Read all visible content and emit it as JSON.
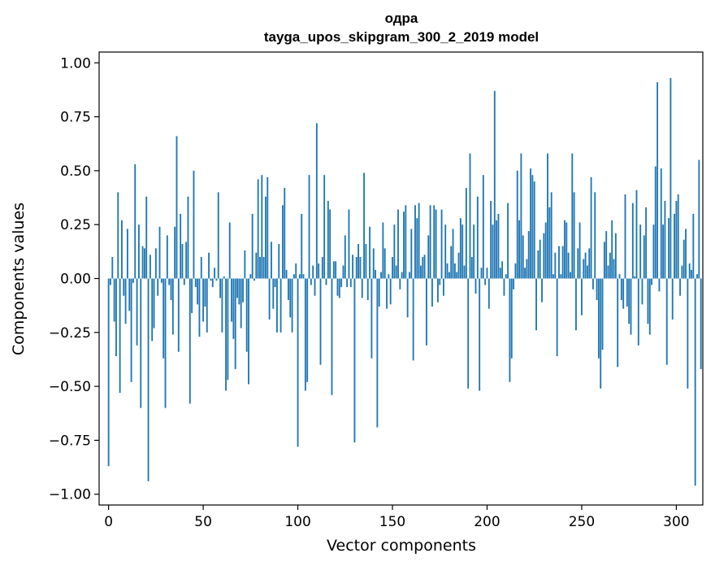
{
  "chart_data": {
    "type": "bar",
    "title": "одра",
    "subtitle": "tayga_upos_skipgram_300_2_2019 model",
    "xlabel": "Vector components",
    "ylabel": "Components values",
    "xlim": [
      -5,
      314
    ],
    "ylim": [
      -1.05,
      1.05
    ],
    "xticks": [
      0,
      50,
      100,
      150,
      200,
      250,
      300
    ],
    "xtick_labels": [
      "0",
      "50",
      "100",
      "150",
      "200",
      "250",
      "300"
    ],
    "yticks": [
      1.0,
      0.75,
      0.5,
      0.25,
      0.0,
      -0.25,
      -0.5,
      -0.75,
      -1.0
    ],
    "ytick_labels": [
      "1.00",
      "0.75",
      "0.50",
      "0.25",
      "0.00",
      "−0.25",
      "−0.50",
      "−0.75",
      "−1.00"
    ],
    "grid": false,
    "color": "#1f77b4",
    "values": [
      -0.87,
      -0.03,
      0.1,
      -0.2,
      -0.36,
      0.4,
      -0.53,
      0.27,
      -0.08,
      -0.21,
      0.23,
      -0.15,
      -0.48,
      -0.02,
      0.53,
      -0.31,
      0.25,
      -0.6,
      0.15,
      0.14,
      0.38,
      -0.94,
      0.11,
      -0.29,
      -0.23,
      0.14,
      -0.08,
      0.24,
      -0.02,
      -0.37,
      -0.6,
      0.2,
      -0.03,
      -0.1,
      -0.26,
      0.24,
      0.66,
      -0.34,
      0.3,
      0.16,
      -0.03,
      0.17,
      0.38,
      -0.58,
      -0.16,
      0.5,
      -0.04,
      -0.12,
      -0.27,
      0.1,
      -0.2,
      -0.13,
      -0.25,
      0.12,
      -0.01,
      -0.04,
      0.05,
      -0.01,
      0.4,
      -0.09,
      -0.25,
      0.01,
      -0.52,
      -0.47,
      0.26,
      -0.2,
      -0.28,
      -0.42,
      -0.09,
      -0.12,
      -0.23,
      -0.11,
      0.13,
      -0.34,
      -0.49,
      0.02,
      0.3,
      -0.01,
      0.12,
      0.46,
      0.1,
      0.48,
      0.1,
      0.38,
      0.47,
      -0.19,
      0.17,
      -0.14,
      -0.04,
      -0.25,
      0.16,
      -0.25,
      0.34,
      0.42,
      0.04,
      -0.1,
      -0.18,
      -0.25,
      0.02,
      0.07,
      -0.78,
      0.02,
      0.3,
      0.02,
      -0.52,
      -0.48,
      0.48,
      -0.03,
      0.06,
      -0.08,
      0.72,
      0.07,
      -0.4,
      0.1,
      0.48,
      -0.03,
      0.36,
      0.32,
      -0.54,
      0.08,
      0.08,
      -0.08,
      -0.09,
      -0.04,
      0.06,
      0.2,
      -0.04,
      0.32,
      -0.04,
      0.11,
      -0.76,
      0.1,
      0.16,
      0.1,
      -0.09,
      0.49,
      0.16,
      -0.1,
      0.24,
      -0.37,
      0.14,
      0.04,
      -0.69,
      -0.13,
      0.03,
      0.26,
      0.14,
      -0.14,
      0.02,
      -0.12,
      0.1,
      0.25,
      0.06,
      0.32,
      -0.05,
      0.03,
      0.31,
      0.34,
      -0.18,
      0.03,
      0.23,
      -0.38,
      0.34,
      0.28,
      0.35,
      0.06,
      0.1,
      0.11,
      -0.31,
      0.2,
      0.34,
      -0.13,
      0.34,
      0.32,
      -0.11,
      -0.03,
      0.32,
      -0.08,
      0.25,
      0.07,
      0.03,
      0.15,
      0.23,
      0.07,
      0.03,
      0.12,
      0.28,
      0.25,
      0.06,
      0.42,
      -0.51,
      0.58,
      0.1,
      0.25,
      -0.07,
      0.38,
      -0.52,
      0.05,
      0.48,
      -0.03,
      0.05,
      -0.14,
      0.36,
      0.25,
      0.87,
      0.27,
      0.3,
      0.05,
      0.08,
      -0.08,
      0.02,
      0.35,
      -0.48,
      -0.37,
      -0.05,
      0.07,
      0.5,
      0.27,
      0.58,
      0.2,
      0.05,
      0.09,
      0.22,
      0.51,
      0.48,
      0.45,
      -0.24,
      0.13,
      0.18,
      -0.11,
      0.21,
      0.26,
      0.58,
      0.33,
      0.4,
      0.02,
      0.12,
      -0.36,
      0.15,
      0.02,
      0.15,
      0.27,
      0.26,
      0.12,
      0.03,
      0.58,
      0.4,
      -0.24,
      0.14,
      0.26,
      -0.17,
      0.09,
      0.12,
      0.06,
      0.14,
      0.47,
      -0.05,
      0.4,
      -0.1,
      -0.37,
      -0.51,
      -0.33,
      0.17,
      0.22,
      0.06,
      0.12,
      0.27,
      0.09,
      0.21,
      -0.41,
      0.02,
      -0.1,
      -0.14,
      0.39,
      -0.13,
      -0.21,
      -0.26,
      0.35,
      0.01,
      0.41,
      -0.31,
      0.25,
      -0.12,
      0.2,
      0.33,
      -0.21,
      -0.26,
      -0.03,
      0.25,
      0.52,
      0.91,
      -0.06,
      0.51,
      0.25,
      0.36,
      -0.4,
      0.28,
      0.93,
      -0.19,
      0.3,
      0.36,
      0.39,
      -0.08,
      0.06,
      0.18,
      0.23,
      -0.51,
      0.07,
      0.04,
      0.3,
      -0.96,
      0.02,
      0.55,
      -0.42
    ]
  }
}
